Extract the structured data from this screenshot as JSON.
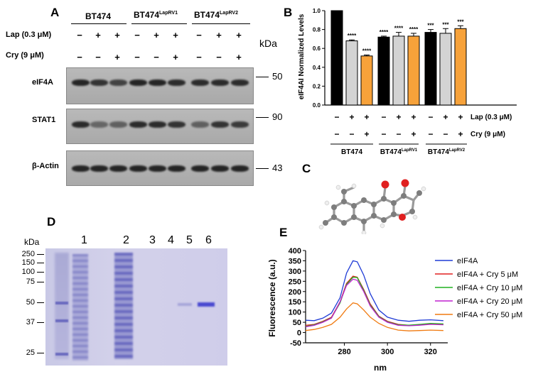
{
  "panel_a": {
    "letter": "A",
    "groups": [
      "BT474",
      "BT474",
      "BT474"
    ],
    "group_sups": [
      "",
      "LapRV1",
      "LapRV2"
    ],
    "lap_label": "Lap (0.3 μM)",
    "cry_label": "Cry (9 μM)",
    "lap_signs": [
      "−",
      "+",
      "+",
      "−",
      "+",
      "+",
      "−",
      "+",
      "+"
    ],
    "cry_signs": [
      "−",
      "−",
      "+",
      "−",
      "−",
      "+",
      "−",
      "−",
      "+"
    ],
    "kda_label": "kDa",
    "blots": [
      {
        "name": "eIF4A",
        "mw": "50",
        "intensities": [
          0.95,
          0.85,
          0.75,
          0.95,
          0.95,
          0.9,
          0.9,
          0.9,
          0.9
        ]
      },
      {
        "name": "STAT1",
        "mw": "90",
        "intensities": [
          0.9,
          0.5,
          0.55,
          0.9,
          0.9,
          0.85,
          0.55,
          0.85,
          0.8
        ]
      },
      {
        "name": "β-Actin",
        "mw": "43",
        "intensities": [
          0.95,
          0.95,
          0.95,
          0.95,
          0.95,
          0.95,
          0.95,
          0.95,
          0.95
        ]
      }
    ]
  },
  "panel_b": {
    "letter": "B",
    "groups": [
      "BT474",
      "BT474",
      "BT474"
    ],
    "group_sups": [
      "",
      "LapRV1",
      "LapRV2"
    ],
    "lap_label": "Lap (0.3 μM)",
    "cry_label": "Cry (9 μM)",
    "lap_signs": [
      "−",
      "+",
      "+",
      "−",
      "+",
      "+",
      "−",
      "+",
      "+"
    ],
    "cry_signs": [
      "−",
      "−",
      "+",
      "−",
      "−",
      "+",
      "−",
      "−",
      "+"
    ]
  },
  "chart_data": [
    {
      "type": "bar",
      "ylabel": "eIF4AI Normalized Levels",
      "ylim": [
        0,
        1.0
      ],
      "yticks": [
        "0.0",
        "0.2",
        "0.4",
        "0.6",
        "0.8",
        "1.0"
      ],
      "values": [
        1.0,
        0.68,
        0.52,
        0.72,
        0.73,
        0.73,
        0.77,
        0.76,
        0.81
      ],
      "errors": [
        0,
        0.01,
        0.01,
        0.01,
        0.04,
        0.03,
        0.03,
        0.05,
        0.03
      ],
      "significance": [
        "",
        "****",
        "****",
        "****",
        "****",
        "****",
        "***",
        "***",
        "***"
      ],
      "bar_colors": [
        "#000000",
        "#d3d3d3",
        "#f7a23a",
        "#000000",
        "#d3d3d3",
        "#f7a23a",
        "#000000",
        "#d3d3d3",
        "#f7a23a"
      ]
    },
    {
      "type": "line",
      "xlabel": "nm",
      "ylabel": "Fluorescence (a.u.)",
      "xlim": [
        262,
        328
      ],
      "ylim": [
        -50,
        400
      ],
      "xticks": [
        "280",
        "300",
        "320"
      ],
      "yticks": [
        "-50",
        "0",
        "50",
        "100",
        "150",
        "200",
        "250",
        "300",
        "350",
        "400"
      ],
      "x": [
        262,
        266,
        270,
        274,
        278,
        281,
        284,
        286,
        289,
        292,
        296,
        300,
        305,
        310,
        315,
        320,
        326
      ],
      "series": [
        {
          "name": "eIF4A",
          "color": "#1f3bd6",
          "values": [
            60,
            58,
            70,
            95,
            170,
            290,
            350,
            345,
            280,
            190,
            110,
            75,
            60,
            55,
            60,
            62,
            58
          ]
        },
        {
          "name": "eIF4A + Cry 5 μM",
          "color": "#e02020",
          "values": [
            35,
            40,
            55,
            75,
            150,
            240,
            275,
            270,
            210,
            140,
            80,
            55,
            40,
            35,
            38,
            42,
            40
          ]
        },
        {
          "name": "eIF4A + Cry 10 μM",
          "color": "#20b020",
          "values": [
            30,
            38,
            52,
            72,
            145,
            235,
            270,
            268,
            205,
            135,
            78,
            52,
            38,
            36,
            40,
            45,
            42
          ]
        },
        {
          "name": "eIF4A + Cry  20 μM",
          "color": "#c020d0",
          "values": [
            28,
            35,
            50,
            70,
            150,
            230,
            260,
            255,
            200,
            130,
            75,
            50,
            35,
            33,
            36,
            40,
            38
          ]
        },
        {
          "name": "eIF4A + Cry 50 μM",
          "color": "#f07a10",
          "values": [
            10,
            15,
            25,
            40,
            75,
            115,
            145,
            140,
            110,
            75,
            45,
            25,
            12,
            8,
            10,
            12,
            10
          ]
        }
      ]
    }
  ],
  "panel_c": {
    "letter": "C"
  },
  "panel_d": {
    "letter": "D",
    "kda_label": "kDa",
    "markers": [
      "250",
      "150",
      "100",
      "75",
      "50",
      "37",
      "25"
    ],
    "lanes": [
      "1",
      "2",
      "3",
      "4",
      "5",
      "6"
    ]
  },
  "panel_e": {
    "letter": "E"
  }
}
